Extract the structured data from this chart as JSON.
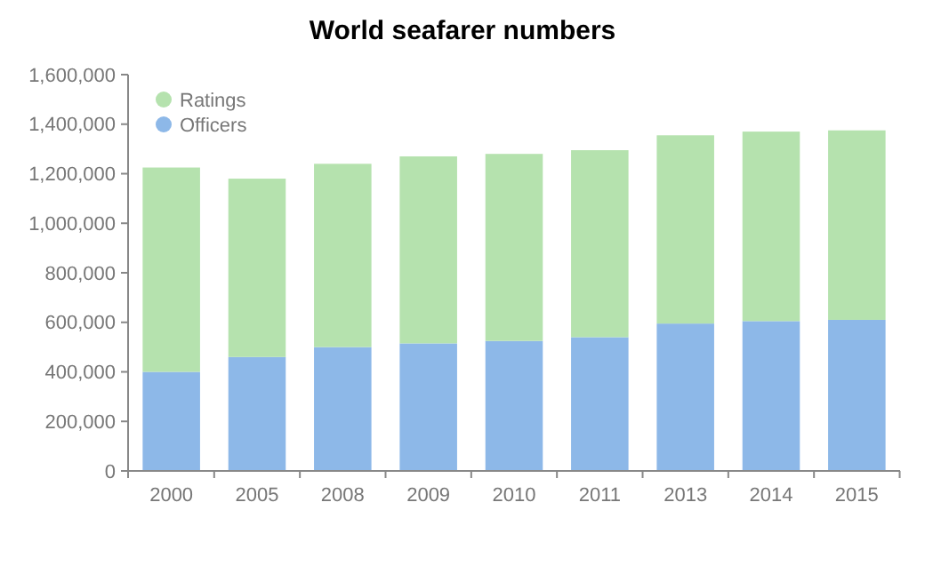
{
  "chart_data": {
    "type": "bar",
    "title": "World seafarer numbers",
    "stacked": true,
    "legend": "top left",
    "categories": [
      "2000",
      "2005",
      "2008",
      "2009",
      "2010",
      "2011",
      "2013",
      "2014",
      "2015"
    ],
    "series": [
      {
        "name": "Officers",
        "color": "#8db8e8",
        "values": [
          400000,
          460000,
          500000,
          515000,
          525000,
          540000,
          595000,
          605000,
          610000
        ]
      },
      {
        "name": "Ratings",
        "color": "#b5e2ae",
        "values": [
          825000,
          720000,
          740000,
          755000,
          755000,
          755000,
          760000,
          765000,
          765000
        ]
      }
    ],
    "ylim": [
      0,
      1600000
    ],
    "yticks": [
      0,
      {
        "value": 200000,
        "label": "200,000"
      },
      {
        "value": 400000,
        "label": "400,000"
      },
      {
        "value": 600000,
        "label": "600,000"
      },
      {
        "value": 800000,
        "label": "800,000"
      },
      {
        "value": 1000000,
        "label": "1,000,000"
      },
      {
        "value": 1200000,
        "label": "1,200,000"
      },
      {
        "value": 1400000,
        "label": "1,400,000"
      },
      {
        "value": 1600000,
        "label": "1,600,000"
      }
    ]
  }
}
